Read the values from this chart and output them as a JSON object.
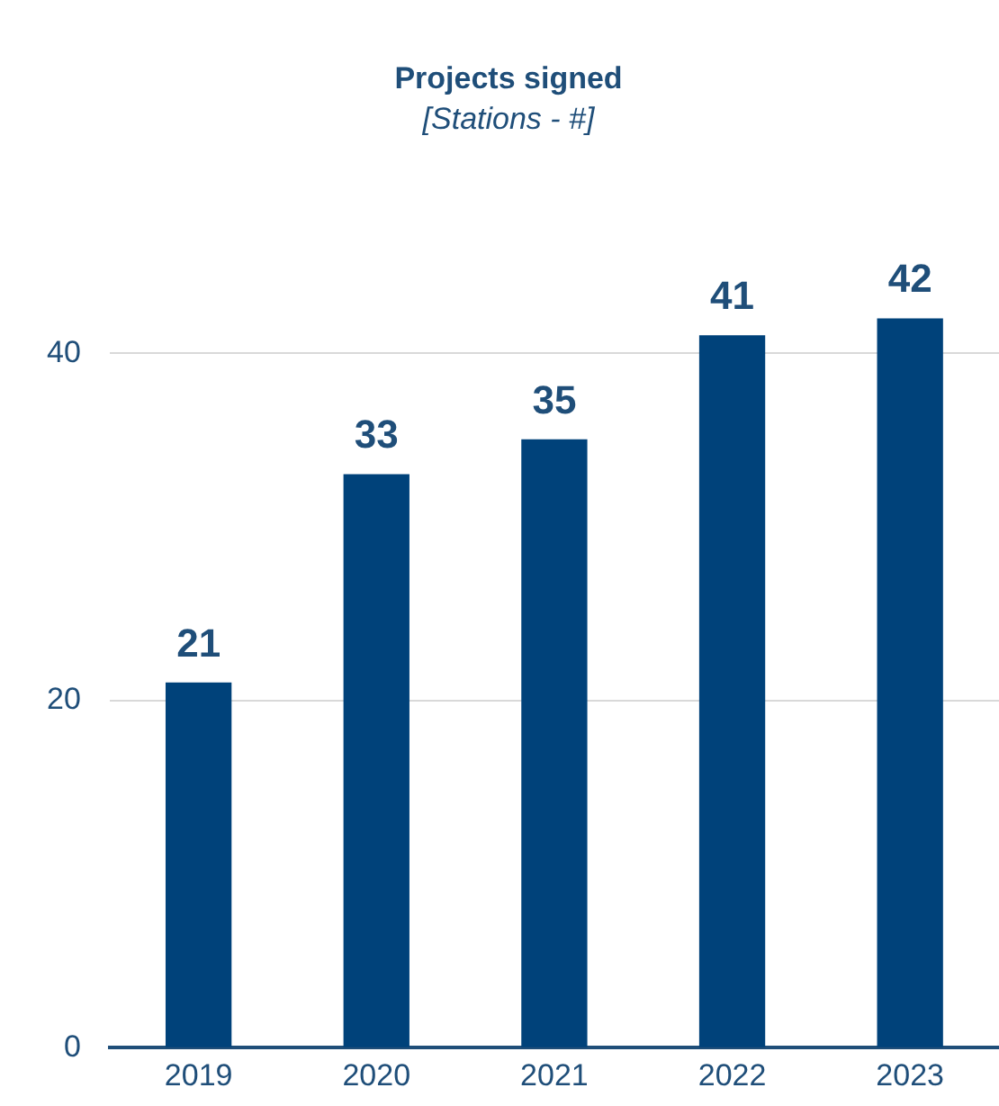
{
  "chart_data": {
    "type": "bar",
    "title": "Projects signed",
    "subtitle": "[Stations - #]",
    "categories": [
      "2019",
      "2020",
      "2021",
      "2022",
      "2023"
    ],
    "values": [
      21,
      33,
      35,
      41,
      42
    ],
    "color": "#00427a",
    "ylim": [
      0,
      42
    ],
    "yticks": [
      0,
      20,
      40
    ],
    "grid": "y",
    "data_labels": true
  }
}
